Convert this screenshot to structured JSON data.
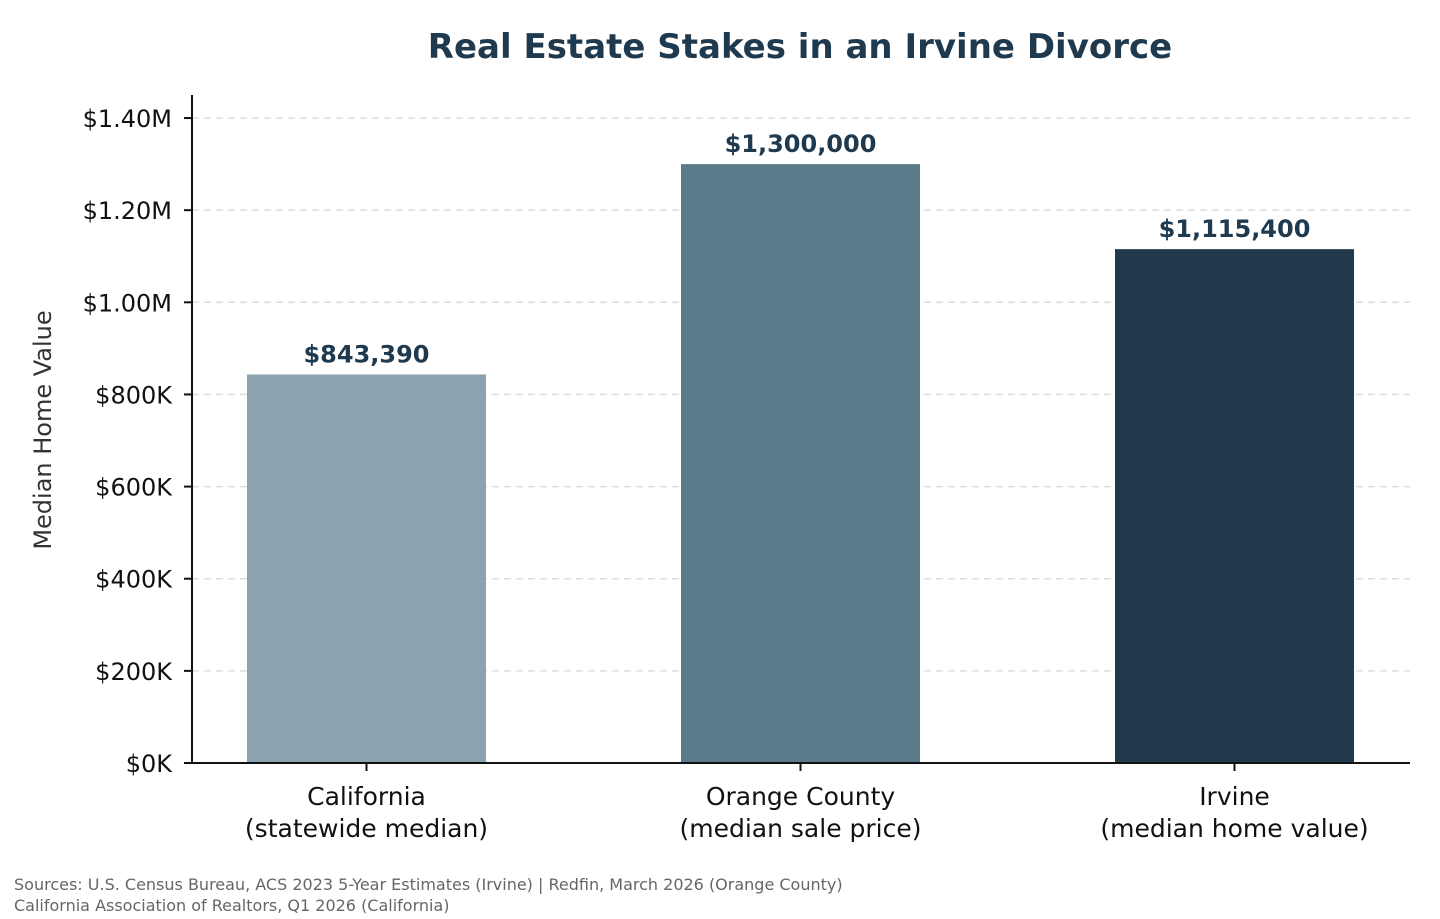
{
  "chart_data": {
    "type": "bar",
    "title": "Real Estate Stakes in an Irvine Divorce",
    "xlabel": "",
    "ylabel": "Median Home Value",
    "categories": [
      [
        "California",
        "(statewide median)"
      ],
      [
        "Orange County",
        "(median sale price)"
      ],
      [
        "Irvine",
        "(median home value)"
      ]
    ],
    "values": [
      843390,
      1300000,
      1115400
    ],
    "value_labels": [
      "$843,390",
      "$1,300,000",
      "$1,115,400"
    ],
    "bar_colors": [
      "#8ba2b0",
      "#5a7b8a",
      "#203a4c"
    ],
    "ylim": [
      0,
      1450000
    ],
    "yticks": [
      0,
      200000,
      400000,
      600000,
      800000,
      1000000,
      1200000,
      1400000
    ],
    "ytick_labels": [
      "$0K",
      "$200K",
      "$400K",
      "$600K",
      "$800K",
      "$1.00M",
      "$1.20M",
      "$1.40M"
    ],
    "grid": true,
    "legend": "none"
  },
  "footer": {
    "sources_line1": "Sources: U.S. Census Bureau, ACS 2023 5-Year Estimates (Irvine) | Redfin, March 2026 (Orange County)",
    "sources_line2": "California Association of Realtors, Q1 2026 (California)"
  },
  "colors": {
    "title": "#1f3a4f",
    "value_label": "#1f3a4f",
    "grid": "#dddddd",
    "axis": "#111111"
  }
}
